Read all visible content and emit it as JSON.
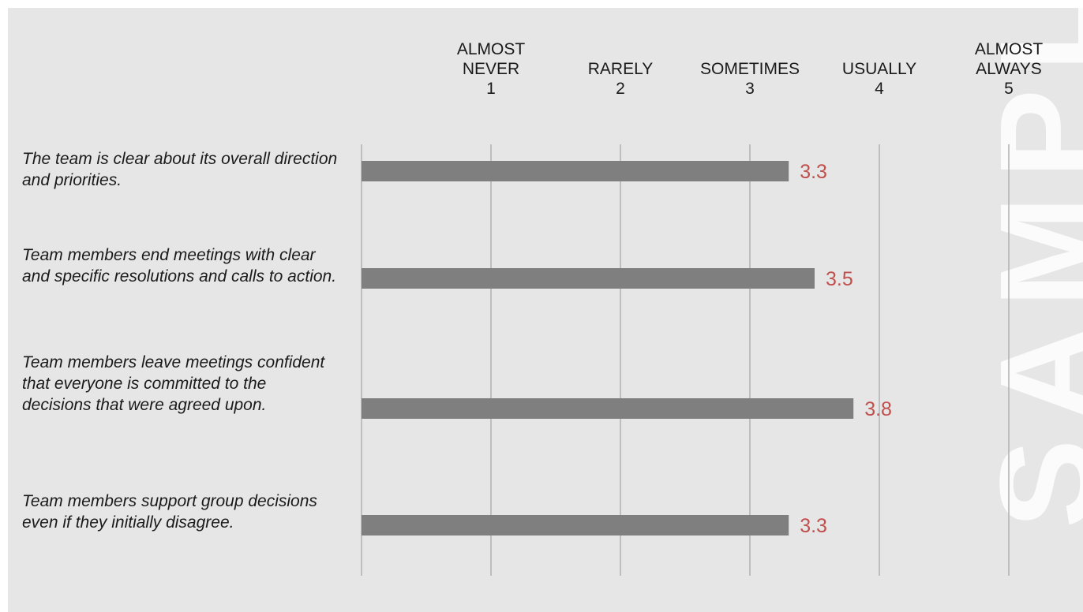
{
  "chart_data": {
    "type": "bar",
    "orientation": "horizontal",
    "xlim": [
      0,
      5
    ],
    "scale": [
      {
        "value": 1,
        "label": "ALMOST\nNEVER"
      },
      {
        "value": 2,
        "label": "RARELY"
      },
      {
        "value": 3,
        "label": "SOMETIMES"
      },
      {
        "value": 4,
        "label": "USUALLY"
      },
      {
        "value": 5,
        "label": "ALMOST\nALWAYS"
      }
    ],
    "categories": [
      "The team is clear about its overall direction and priorities.",
      "Team members end meetings with clear and specific resolutions and calls to action.",
      "Team members leave meetings confident that everyone is committed to the decisions that were agreed upon.",
      "Team members support group decisions even if they initially disagree."
    ],
    "values": [
      3.3,
      3.5,
      3.8,
      3.3
    ],
    "value_labels": [
      "3.3",
      "3.5",
      "3.8",
      "3.3"
    ],
    "grid": true,
    "legend": "none"
  },
  "watermark": "SAMPLE",
  "colors": {
    "background": "#e6e6e6",
    "bar": "#7f7f7f",
    "gridline": "#b0b0b0",
    "value_label": "#c0504d",
    "text": "#1a1a1a",
    "watermark": "#ffffff"
  }
}
